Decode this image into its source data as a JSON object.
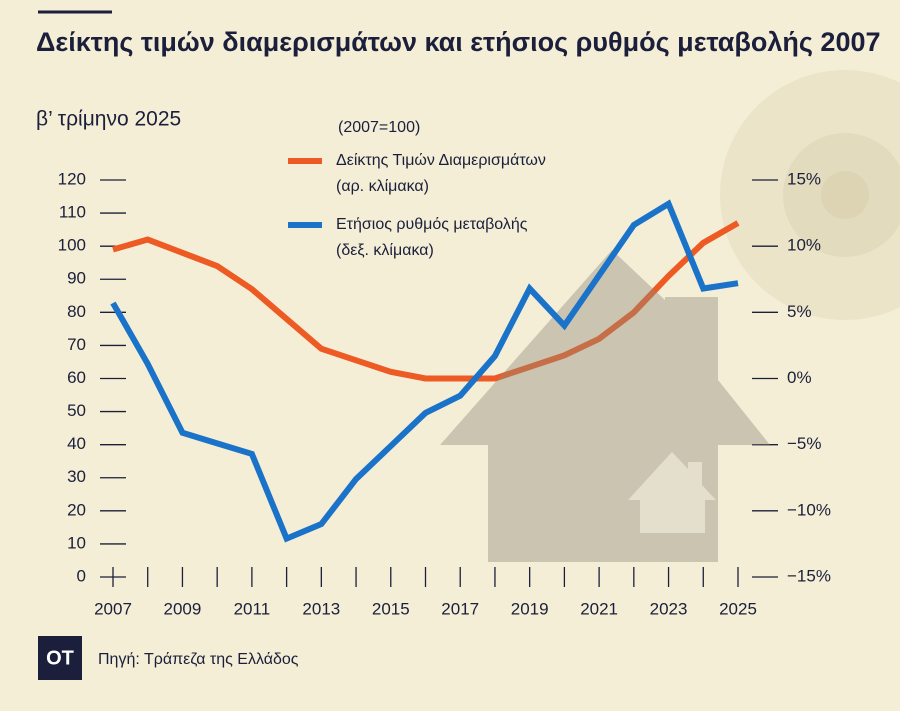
{
  "chart_data": {
    "type": "line",
    "title": "Δείκτης τιμών διαμερισμάτων και ετήσιος ρυθμός μεταβολής 2007",
    "subtitle": "β’ τρίμηνο 2025",
    "note": "(2007=100)",
    "x": [
      2007,
      2008,
      2009,
      2010,
      2011,
      2012,
      2013,
      2014,
      2015,
      2016,
      2017,
      2018,
      2019,
      2020,
      2021,
      2022,
      2023,
      2024,
      2025
    ],
    "xlim": [
      2007,
      2025
    ],
    "xticks": [
      2007,
      2009,
      2011,
      2013,
      2015,
      2017,
      2019,
      2021,
      2023,
      2025
    ],
    "ylim": [
      0,
      120
    ],
    "yticks": [
      0,
      10,
      20,
      30,
      40,
      50,
      60,
      70,
      80,
      90,
      100,
      110,
      120
    ],
    "y2lim": [
      -15,
      15
    ],
    "y2ticks": [
      {
        "value": -15,
        "label": "−15%"
      },
      {
        "value": -10,
        "label": "−10%"
      },
      {
        "value": -5,
        "label": "−5%"
      },
      {
        "value": 0,
        "label": "0%"
      },
      {
        "value": 5,
        "label": "5%"
      },
      {
        "value": 10,
        "label": "10%"
      },
      {
        "value": 15,
        "label": "15%"
      }
    ],
    "series": [
      {
        "name": "Δείκτης Τιμών Διαμερισμάτων",
        "scale_label": "(αρ. κλίμακα)",
        "color": "#ee5a24",
        "values": [
          99,
          102,
          98,
          94,
          87,
          78,
          69,
          65.5,
          62,
          60,
          60,
          60,
          63.5,
          67,
          72,
          80,
          91,
          101,
          107
        ]
      },
      {
        "name": "Ετήσιος ρυθμός μεταβολής",
        "scale_label": "(δεξ. κλίμακα)",
        "color": "#1a73c8",
        "axis": "y2",
        "values": [
          5.7,
          1.1,
          -4.1,
          -4.9,
          -5.7,
          -12.1,
          -11.0,
          -7.6,
          -5.1,
          -2.6,
          -1.3,
          1.7,
          6.8,
          4.0,
          7.8,
          11.6,
          13.2,
          6.8,
          7.2
        ]
      }
    ],
    "logo": "ΟΤ",
    "source": "Πηγή: Τράπεζα της Ελλάδος"
  }
}
